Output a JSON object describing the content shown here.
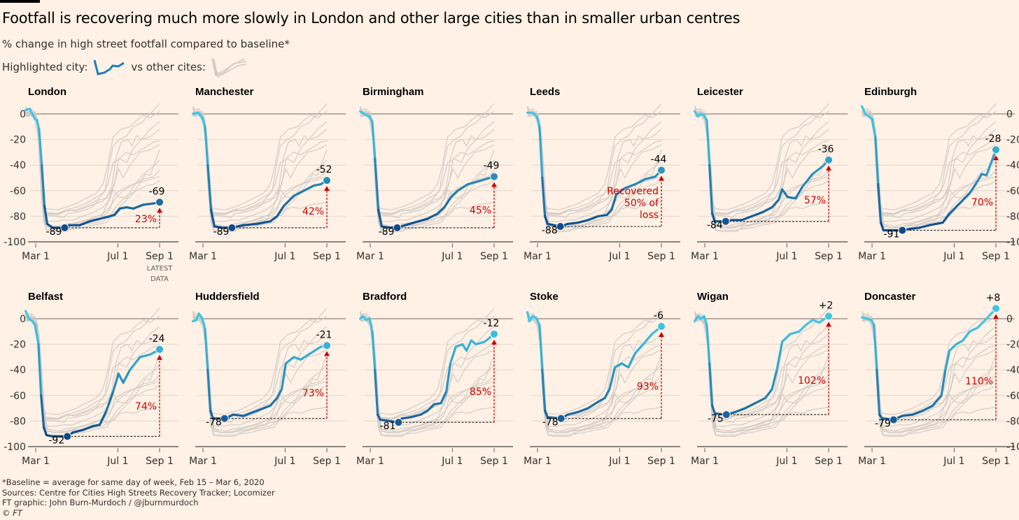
{
  "title": "Footfall is recovering much more slowly in London and other large cities than in smaller urban centres",
  "subtitle": "% change in high street footfall compared to baseline*",
  "legend": {
    "highlighted_label": "Highlighted city:",
    "others_label": "vs other cites:"
  },
  "footer": {
    "note": "*Baseline = average for same day of week, Feb 15 – Mar 6, 2020",
    "sources": "Sources: Centre for Cities High Streets Recovery Tracker; Locomizer",
    "credit": "FT graphic: John Burn-Murdoch / @jburnmurdoch",
    "copyright": "© FT"
  },
  "colors": {
    "high": "#3ec6e6",
    "low": "#0d4a8c",
    "other": "#cfcac5",
    "annotation": "#cc0000",
    "axis": "#66605c",
    "grid": "#e0d6cc"
  },
  "chart_data": {
    "type": "line",
    "x_unit": "days since Feb 15, 2020",
    "x_ticks": [
      {
        "day": 15,
        "label": "Mar 1"
      },
      {
        "day": 137,
        "label": "Jul 1"
      },
      {
        "day": 199,
        "label": "Sep 1"
      }
    ],
    "latest_note": [
      "LATEST",
      "DATA"
    ],
    "y_ticks": [
      0,
      -20,
      -40,
      -60,
      -80,
      -100
    ],
    "ylim": [
      -100,
      10
    ],
    "series": [
      {
        "name": "London",
        "min": -89,
        "min_day": 58,
        "latest": -69,
        "latest_label": "-69",
        "recovered": "23%",
        "points": [
          [
            0,
            3
          ],
          [
            6,
            4
          ],
          [
            10,
            0
          ],
          [
            14,
            -4
          ],
          [
            17,
            -5
          ],
          [
            20,
            -12
          ],
          [
            24,
            -40
          ],
          [
            28,
            -72
          ],
          [
            32,
            -86
          ],
          [
            40,
            -89
          ],
          [
            58,
            -89
          ],
          [
            65,
            -87
          ],
          [
            80,
            -87
          ],
          [
            95,
            -84
          ],
          [
            110,
            -82
          ],
          [
            125,
            -80
          ],
          [
            132,
            -79
          ],
          [
            140,
            -74
          ],
          [
            150,
            -73
          ],
          [
            160,
            -74
          ],
          [
            175,
            -71
          ],
          [
            190,
            -70
          ],
          [
            199,
            -69
          ]
        ]
      },
      {
        "name": "Manchester",
        "min": -89,
        "min_day": 58,
        "latest": -52,
        "latest_label": "-52",
        "recovered": "42%",
        "points": [
          [
            0,
            0
          ],
          [
            8,
            1
          ],
          [
            14,
            -3
          ],
          [
            18,
            -10
          ],
          [
            22,
            -40
          ],
          [
            27,
            -75
          ],
          [
            32,
            -88
          ],
          [
            45,
            -89
          ],
          [
            58,
            -89
          ],
          [
            75,
            -87
          ],
          [
            95,
            -86
          ],
          [
            115,
            -84
          ],
          [
            125,
            -80
          ],
          [
            135,
            -72
          ],
          [
            150,
            -64
          ],
          [
            165,
            -60
          ],
          [
            180,
            -56
          ],
          [
            190,
            -55
          ],
          [
            199,
            -52
          ]
        ]
      },
      {
        "name": "Birmingham",
        "min": -89,
        "min_day": 55,
        "latest": -49,
        "latest_label": "-49",
        "recovered": "45%",
        "points": [
          [
            0,
            2
          ],
          [
            6,
            0
          ],
          [
            14,
            -2
          ],
          [
            18,
            -6
          ],
          [
            22,
            -35
          ],
          [
            27,
            -75
          ],
          [
            32,
            -88
          ],
          [
            45,
            -89
          ],
          [
            60,
            -88
          ],
          [
            80,
            -85
          ],
          [
            100,
            -82
          ],
          [
            115,
            -78
          ],
          [
            125,
            -73
          ],
          [
            135,
            -65
          ],
          [
            145,
            -60
          ],
          [
            160,
            -55
          ],
          [
            180,
            -52
          ],
          [
            199,
            -49
          ]
        ]
      },
      {
        "name": "Leeds",
        "min": -88,
        "min_day": 49,
        "latest": -44,
        "latest_label": "-44",
        "recovered": "Recovered 50% of loss",
        "recovered_lines": [
          "Recovered",
          "50% of",
          "loss"
        ],
        "points": [
          [
            0,
            1
          ],
          [
            8,
            1
          ],
          [
            14,
            -2
          ],
          [
            18,
            -10
          ],
          [
            22,
            -50
          ],
          [
            26,
            -80
          ],
          [
            30,
            -86
          ],
          [
            49,
            -88
          ],
          [
            60,
            -86
          ],
          [
            75,
            -85
          ],
          [
            90,
            -83
          ],
          [
            105,
            -80
          ],
          [
            118,
            -79
          ],
          [
            125,
            -75
          ],
          [
            132,
            -63
          ],
          [
            145,
            -58
          ],
          [
            160,
            -55
          ],
          [
            175,
            -51
          ],
          [
            190,
            -49
          ],
          [
            199,
            -44
          ]
        ]
      },
      {
        "name": "Leicester",
        "min": -84,
        "min_day": 46,
        "latest": -36,
        "latest_label": "-36",
        "recovered": "57%",
        "points": [
          [
            0,
            2
          ],
          [
            5,
            -2
          ],
          [
            9,
            0
          ],
          [
            14,
            -1
          ],
          [
            18,
            -5
          ],
          [
            22,
            -40
          ],
          [
            26,
            -78
          ],
          [
            30,
            -84
          ],
          [
            46,
            -84
          ],
          [
            55,
            -83
          ],
          [
            70,
            -83
          ],
          [
            85,
            -80
          ],
          [
            100,
            -77
          ],
          [
            115,
            -73
          ],
          [
            125,
            -67
          ],
          [
            130,
            -59
          ],
          [
            138,
            -65
          ],
          [
            150,
            -66
          ],
          [
            160,
            -57
          ],
          [
            175,
            -47
          ],
          [
            190,
            -41
          ],
          [
            199,
            -36
          ]
        ]
      },
      {
        "name": "Edinburgh",
        "min": -91,
        "min_day": 60,
        "latest": -28,
        "latest_label": "-28",
        "recovered": "70%",
        "points": [
          [
            0,
            6
          ],
          [
            5,
            0
          ],
          [
            10,
            -2
          ],
          [
            15,
            -4
          ],
          [
            20,
            -18
          ],
          [
            24,
            -55
          ],
          [
            28,
            -85
          ],
          [
            32,
            -91
          ],
          [
            60,
            -91
          ],
          [
            70,
            -90
          ],
          [
            85,
            -89
          ],
          [
            100,
            -87
          ],
          [
            120,
            -85
          ],
          [
            130,
            -78
          ],
          [
            145,
            -70
          ],
          [
            160,
            -62
          ],
          [
            170,
            -54
          ],
          [
            178,
            -47
          ],
          [
            185,
            -48
          ],
          [
            199,
            -28
          ]
        ]
      },
      {
        "name": "Belfast",
        "min": -92,
        "min_day": 62,
        "latest": -24,
        "latest_label": "-24",
        "recovered": "74%",
        "points": [
          [
            0,
            6
          ],
          [
            5,
            0
          ],
          [
            10,
            -2
          ],
          [
            14,
            -5
          ],
          [
            19,
            -20
          ],
          [
            23,
            -60
          ],
          [
            27,
            -85
          ],
          [
            31,
            -91
          ],
          [
            40,
            -92
          ],
          [
            62,
            -92
          ],
          [
            70,
            -89
          ],
          [
            85,
            -87
          ],
          [
            100,
            -84
          ],
          [
            110,
            -83
          ],
          [
            120,
            -72
          ],
          [
            130,
            -57
          ],
          [
            138,
            -43
          ],
          [
            145,
            -50
          ],
          [
            155,
            -40
          ],
          [
            170,
            -30
          ],
          [
            185,
            -28
          ],
          [
            199,
            -24
          ]
        ]
      },
      {
        "name": "Huddersfield",
        "min": -78,
        "min_day": 47,
        "latest": -21,
        "latest_label": "-21",
        "recovered": "73%",
        "points": [
          [
            0,
            -2
          ],
          [
            5,
            -1
          ],
          [
            9,
            4
          ],
          [
            14,
            0
          ],
          [
            18,
            -8
          ],
          [
            22,
            -40
          ],
          [
            26,
            -72
          ],
          [
            30,
            -78
          ],
          [
            47,
            -78
          ],
          [
            60,
            -75
          ],
          [
            75,
            -76
          ],
          [
            90,
            -73
          ],
          [
            105,
            -70
          ],
          [
            115,
            -68
          ],
          [
            125,
            -62
          ],
          [
            132,
            -55
          ],
          [
            138,
            -35
          ],
          [
            150,
            -30
          ],
          [
            160,
            -32
          ],
          [
            175,
            -27
          ],
          [
            190,
            -22
          ],
          [
            199,
            -21
          ]
        ]
      },
      {
        "name": "Bradford",
        "min": -81,
        "min_day": 57,
        "latest": -12,
        "latest_label": "-12",
        "recovered": "85%",
        "points": [
          [
            0,
            0
          ],
          [
            4,
            2
          ],
          [
            9,
            -1
          ],
          [
            14,
            0
          ],
          [
            18,
            -10
          ],
          [
            22,
            -40
          ],
          [
            26,
            -75
          ],
          [
            30,
            -79
          ],
          [
            57,
            -81
          ],
          [
            62,
            -78
          ],
          [
            75,
            -77
          ],
          [
            90,
            -75
          ],
          [
            100,
            -72
          ],
          [
            110,
            -67
          ],
          [
            120,
            -66
          ],
          [
            128,
            -57
          ],
          [
            134,
            -35
          ],
          [
            142,
            -22
          ],
          [
            152,
            -20
          ],
          [
            158,
            -25
          ],
          [
            165,
            -17
          ],
          [
            172,
            -20
          ],
          [
            185,
            -18
          ],
          [
            199,
            -12
          ]
        ]
      },
      {
        "name": "Stoke",
        "min": -78,
        "min_day": 50,
        "latest": -6,
        "latest_label": "-6",
        "recovered": "93%",
        "points": [
          [
            0,
            5
          ],
          [
            3,
            -2
          ],
          [
            8,
            2
          ],
          [
            14,
            0
          ],
          [
            18,
            -5
          ],
          [
            22,
            -40
          ],
          [
            26,
            -72
          ],
          [
            30,
            -77
          ],
          [
            50,
            -78
          ],
          [
            60,
            -75
          ],
          [
            75,
            -73
          ],
          [
            90,
            -70
          ],
          [
            105,
            -65
          ],
          [
            115,
            -62
          ],
          [
            122,
            -55
          ],
          [
            130,
            -38
          ],
          [
            140,
            -35
          ],
          [
            150,
            -38
          ],
          [
            160,
            -27
          ],
          [
            172,
            -20
          ],
          [
            185,
            -12
          ],
          [
            199,
            -6
          ]
        ]
      },
      {
        "name": "Wigan",
        "min": -75,
        "min_day": 47,
        "latest": 2,
        "latest_label": "+2",
        "recovered": "102%",
        "points": [
          [
            0,
            -2
          ],
          [
            5,
            2
          ],
          [
            9,
            0
          ],
          [
            14,
            2
          ],
          [
            18,
            -5
          ],
          [
            22,
            -35
          ],
          [
            26,
            -68
          ],
          [
            30,
            -74
          ],
          [
            47,
            -75
          ],
          [
            60,
            -73
          ],
          [
            75,
            -70
          ],
          [
            90,
            -66
          ],
          [
            105,
            -62
          ],
          [
            115,
            -55
          ],
          [
            122,
            -40
          ],
          [
            130,
            -18
          ],
          [
            142,
            -12
          ],
          [
            155,
            -10
          ],
          [
            165,
            -5
          ],
          [
            175,
            -1
          ],
          [
            185,
            -3
          ],
          [
            199,
            2
          ]
        ]
      },
      {
        "name": "Doncaster",
        "min": -79,
        "min_day": 47,
        "latest": 8,
        "latest_label": "+8",
        "recovered": "110%",
        "points": [
          [
            0,
            1
          ],
          [
            8,
            0
          ],
          [
            14,
            -1
          ],
          [
            18,
            -5
          ],
          [
            22,
            -40
          ],
          [
            26,
            -75
          ],
          [
            30,
            -78
          ],
          [
            47,
            -79
          ],
          [
            60,
            -76
          ],
          [
            75,
            -75
          ],
          [
            90,
            -72
          ],
          [
            105,
            -68
          ],
          [
            118,
            -60
          ],
          [
            124,
            -40
          ],
          [
            130,
            -25
          ],
          [
            140,
            -20
          ],
          [
            150,
            -17
          ],
          [
            160,
            -10
          ],
          [
            172,
            -7
          ],
          [
            185,
            0
          ],
          [
            199,
            8
          ]
        ]
      }
    ]
  }
}
